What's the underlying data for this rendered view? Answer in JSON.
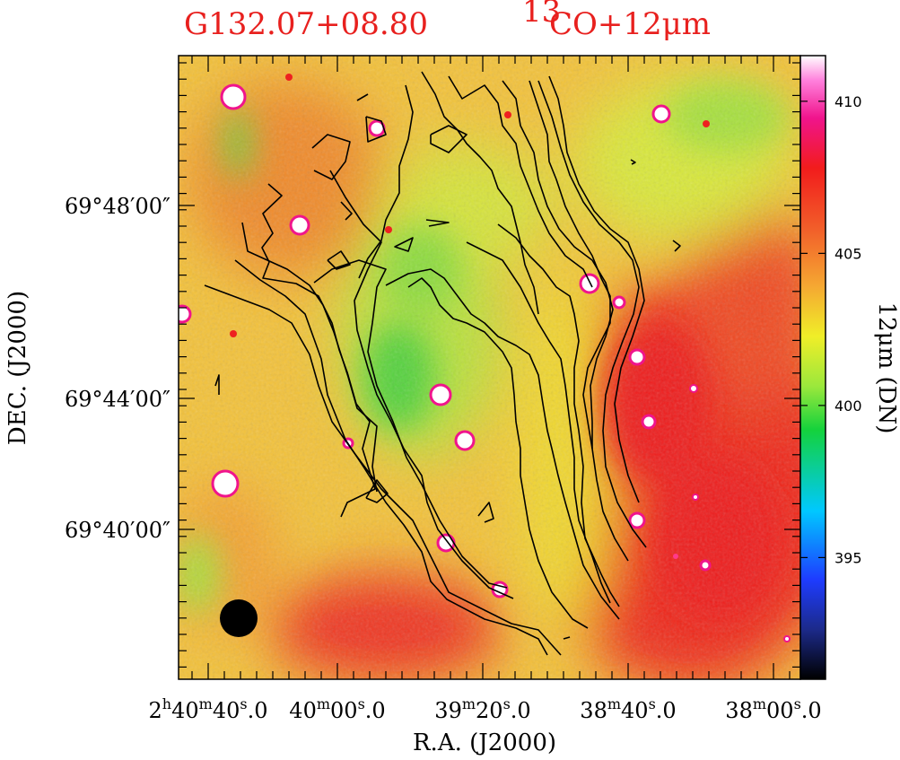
{
  "chart_data": {
    "type": "heatmap",
    "title_left": "G132.07+08.80",
    "title_right_sup": "13",
    "title_right": "CO+12μm",
    "xlabel": "R.A.  (J2000)",
    "ylabel": "DEC.  (J2000)",
    "colorbar_label": "12μm (DN)",
    "colorbar_ticks": [
      395,
      400,
      405,
      410
    ],
    "colorbar_range": [
      391,
      411.5
    ],
    "x_ticks": [
      {
        "h": "2",
        "hu": "h",
        "m": "40",
        "mu": "m",
        "s": "40",
        "su": "s",
        "frac": ".0"
      },
      {
        "h": "",
        "hu": "",
        "m": "40",
        "mu": "m",
        "s": "00",
        "su": "s",
        "frac": ".0"
      },
      {
        "h": "",
        "hu": "",
        "m": "39",
        "mu": "m",
        "s": "20",
        "su": "s",
        "frac": ".0"
      },
      {
        "h": "",
        "hu": "",
        "m": "38",
        "mu": "m",
        "s": "40",
        "su": "s",
        "frac": ".0"
      },
      {
        "h": "",
        "hu": "",
        "m": "38",
        "mu": "m",
        "s": "00",
        "su": "s",
        "frac": ".0"
      }
    ],
    "y_ticks": [
      "69°48′00″",
      "69°44′00″",
      "69°40′00″"
    ],
    "colormap": [
      "#000000",
      "#1e3cff",
      "#00c8ff",
      "#14d23c",
      "#9be83c",
      "#f0ee28",
      "#f5a832",
      "#f2602a",
      "#f21c1c",
      "#f0148c",
      "#ff64d2",
      "#ffffff"
    ]
  }
}
